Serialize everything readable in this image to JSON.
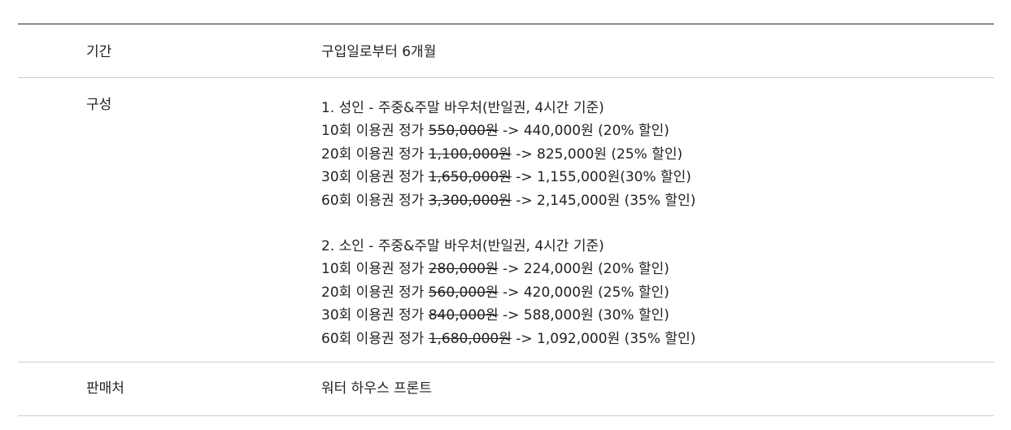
{
  "rows": {
    "period": {
      "label": "기간",
      "value": "구입일로부터 6개월"
    },
    "composition": {
      "label": "구성",
      "adult": {
        "heading": "1. 성인 - 주중&주말 바우처(반일권, 4시간 기준)",
        "items": [
          {
            "prefix": "10회 이용권 정가 ",
            "old_price": "550,000원",
            "suffix": " -> 440,000원 (20% 할인)"
          },
          {
            "prefix": "20회 이용권 정가 ",
            "old_price": "1,100,000원",
            "suffix": " -> 825,000원 (25% 할인)"
          },
          {
            "prefix": "30회 이용권 정가 ",
            "old_price": "1,650,000원",
            "suffix": " -> 1,155,000원(30% 할인)"
          },
          {
            "prefix": "60회 이용권 정가 ",
            "old_price": "3,300,000원",
            "suffix": " -> 2,145,000원 (35% 할인)"
          }
        ]
      },
      "child": {
        "heading": "2. 소인 - 주중&주말 바우처(반일권, 4시간 기준)",
        "items": [
          {
            "prefix": "10회 이용권 정가 ",
            "old_price": "280,000원",
            "suffix": " -> 224,000원 (20% 할인)"
          },
          {
            "prefix": "20회 이용권 정가 ",
            "old_price": "560,000원",
            "suffix": " -> 420,000원 (25% 할인)"
          },
          {
            "prefix": "30회 이용권 정가 ",
            "old_price": "840,000원",
            "suffix": " -> 588,000원 (30% 할인)"
          },
          {
            "prefix": "60회 이용권 정가 ",
            "old_price": "1,680,000원",
            "suffix": " -> 1,092,000원 (35% 할인)"
          }
        ]
      }
    },
    "seller": {
      "label": "판매처",
      "value": "워터 하우스 프론트"
    }
  }
}
